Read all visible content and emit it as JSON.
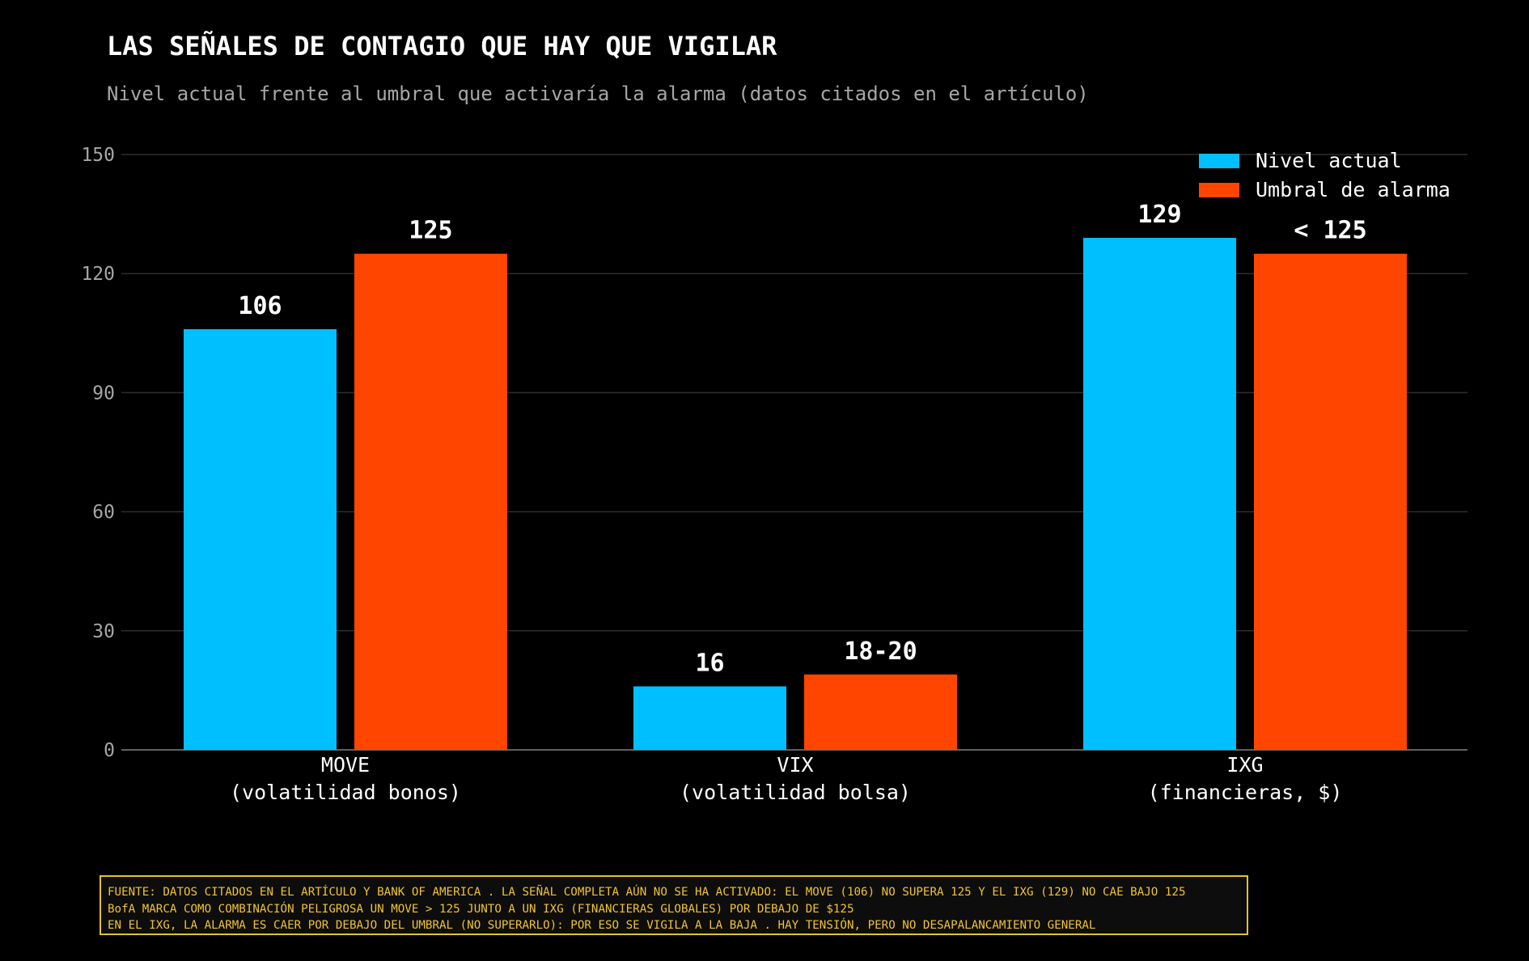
{
  "title": "LAS SEÑALES DE CONTAGIO QUE HAY QUE VIGILAR",
  "subtitle": "Nivel actual frente al umbral que activaría la alarma (datos citados en el artículo)",
  "chart_data": {
    "type": "bar",
    "title": "LAS SEÑALES DE CONTAGIO QUE HAY QUE VIGILAR",
    "subtitle": "Nivel actual frente al umbral que activaría la alarma (datos citados en el artículo)",
    "categories": [
      [
        "MOVE",
        "(volatilidad bonos)"
      ],
      [
        "VIX",
        "(volatilidad bolsa)"
      ],
      [
        "IXG",
        "(financieras, $)"
      ]
    ],
    "series": [
      {
        "name": "Nivel actual",
        "color": "#00bfff",
        "values": [
          106,
          16,
          129
        ],
        "labels": [
          "106",
          "16",
          "129"
        ]
      },
      {
        "name": "Umbral de alarma",
        "color": "#ff4500",
        "values": [
          125,
          19,
          125
        ],
        "labels": [
          "125",
          "18-20",
          "< 125"
        ]
      }
    ],
    "ylim": [
      0,
      150
    ],
    "yticks": [
      0,
      30,
      60,
      90,
      120,
      150
    ],
    "grid": true,
    "legend": "top-right"
  },
  "note": {
    "lines": [
      "FUENTE: DATOS CITADOS EN EL ARTÍCULO Y BANK OF AMERICA . LA SEÑAL COMPLETA AÚN NO SE HA ACTIVADO: EL MOVE (106) NO SUPERA 125 Y EL IXG (129) NO CAE BAJO 125",
      "BofA MARCA COMO COMBINACIÓN PELIGROSA UN MOVE > 125 JUNTO A UN IXG (FINANCIERAS GLOBALES) POR DEBAJO DE $125",
      "EN EL IXG, LA ALARMA ES CAER POR DEBAJO DEL UMBRAL (NO SUPERARLO): POR ESO SE VIGILA A LA BAJA . HAY TENSIÓN, PERO NO DESAPALANCAMIENTO GENERAL"
    ]
  }
}
